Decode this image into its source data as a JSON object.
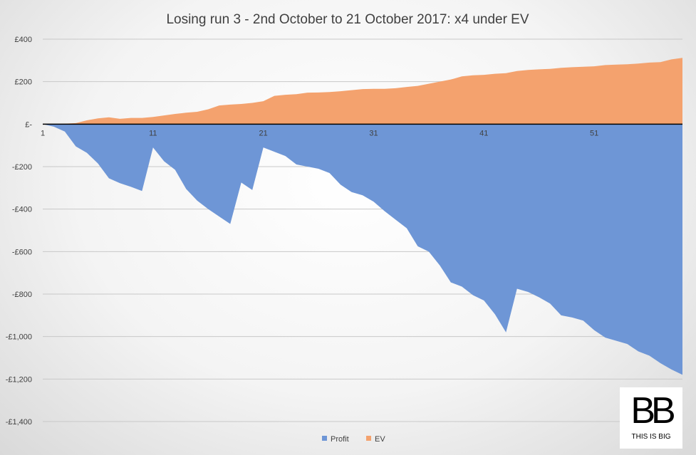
{
  "chart_data": {
    "type": "area",
    "title": "Losing run 3 - 2nd October to 21 October 2017: x4 under EV",
    "xlabel": "",
    "ylabel": "",
    "ylim": [
      -1400,
      400
    ],
    "y_tick_values": [
      400,
      200,
      0,
      -200,
      -400,
      -600,
      -800,
      -1000,
      -1200,
      -1400
    ],
    "y_tick_labels": [
      "£400",
      "£200",
      "£-",
      "-£200",
      "-£400",
      "-£600",
      "-£800",
      "-£1,000",
      "-£1,200",
      "-£1,400"
    ],
    "x_tick_labels": [
      "1",
      "11",
      "21",
      "31",
      "41",
      "51"
    ],
    "x_tick_positions": [
      1,
      11,
      21,
      31,
      41,
      51
    ],
    "x": [
      1,
      2,
      3,
      4,
      5,
      6,
      7,
      8,
      9,
      10,
      11,
      12,
      13,
      14,
      15,
      16,
      17,
      18,
      19,
      20,
      21,
      22,
      23,
      24,
      25,
      26,
      27,
      28,
      29,
      30,
      31,
      32,
      33,
      34,
      35,
      36,
      37,
      38,
      39,
      40,
      41,
      42,
      43,
      44,
      45,
      46,
      47,
      48,
      49,
      50,
      51,
      52,
      53,
      54,
      55,
      56,
      57,
      58,
      59
    ],
    "grid": true,
    "legend_position": "bottom",
    "series": [
      {
        "name": "Profit",
        "color": "#6e96d6",
        "values": [
          0,
          -12,
          -35,
          -105,
          -135,
          -185,
          -255,
          -278,
          -295,
          -315,
          -110,
          -175,
          -215,
          -305,
          -360,
          -400,
          -435,
          -470,
          -275,
          -310,
          -110,
          -130,
          -150,
          -190,
          -200,
          -210,
          -230,
          -285,
          -320,
          -335,
          -365,
          -410,
          -450,
          -490,
          -575,
          -600,
          -665,
          -745,
          -765,
          -805,
          -830,
          -895,
          -980,
          -775,
          -790,
          -815,
          -845,
          -900,
          -910,
          -925,
          -970,
          -1005,
          -1020,
          -1035,
          -1070,
          -1090,
          -1125,
          -1155,
          -1180
        ]
      },
      {
        "name": "EV",
        "color": "#f4a26e",
        "values": [
          0,
          0,
          2,
          5,
          18,
          27,
          32,
          25,
          29,
          29,
          34,
          41,
          48,
          54,
          58,
          70,
          88,
          92,
          95,
          100,
          108,
          133,
          138,
          141,
          148,
          149,
          151,
          155,
          160,
          165,
          166,
          166,
          169,
          175,
          180,
          190,
          200,
          210,
          225,
          230,
          232,
          237,
          240,
          250,
          255,
          258,
          260,
          265,
          268,
          270,
          272,
          278,
          280,
          282,
          285,
          290,
          292,
          305,
          312
        ]
      }
    ]
  },
  "logo": {
    "mark": "BB",
    "text": "THIS IS BIG"
  }
}
